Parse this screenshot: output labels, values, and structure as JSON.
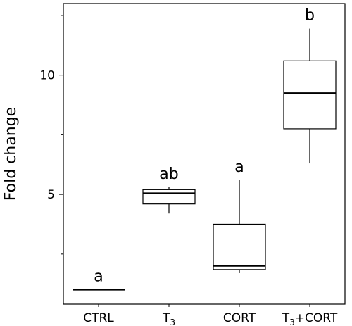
{
  "chart_data": {
    "type": "box",
    "title": "",
    "xlabel": "",
    "ylabel": "Fold change",
    "ylim": [
      0.4,
      13.0
    ],
    "yticks": [
      {
        "value": 5,
        "label": "5"
      },
      {
        "value": 10,
        "label": "10"
      }
    ],
    "minor_yticks": [
      2.5,
      7.5,
      12.5
    ],
    "categories": [
      {
        "label": "CTRL",
        "sub": ""
      },
      {
        "label": "T",
        "sub": "3"
      },
      {
        "label": "CORT",
        "sub": ""
      },
      {
        "label": "T",
        "sub": "3",
        "suffix": "+CORT"
      }
    ],
    "boxes": [
      {
        "min": 1.0,
        "q1": 1.0,
        "median": 1.0,
        "q3": 1.0,
        "max": 1.0,
        "significance": "a"
      },
      {
        "min": 4.2,
        "q1": 4.6,
        "median": 5.05,
        "q3": 5.2,
        "max": 5.3,
        "significance": "ab"
      },
      {
        "min": 1.7,
        "q1": 1.85,
        "median": 2.0,
        "q3": 3.75,
        "max": 5.6,
        "significance": "a"
      },
      {
        "min": 6.3,
        "q1": 7.75,
        "median": 9.25,
        "q3": 10.6,
        "max": 11.95,
        "significance": "b"
      }
    ]
  }
}
